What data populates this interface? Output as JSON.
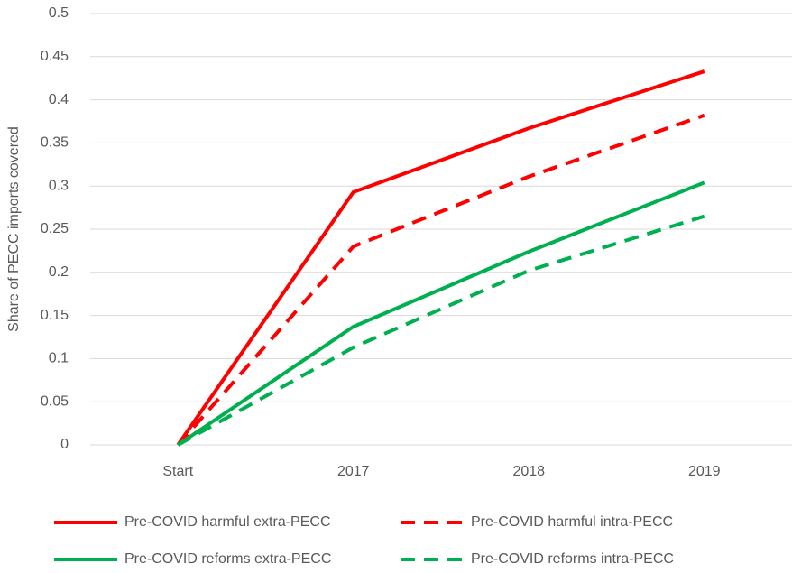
{
  "chart_data": {
    "type": "line",
    "y_label": "Share of PECC imports covered",
    "categories": [
      "Start",
      "2017",
      "2018",
      "2019"
    ],
    "series": [
      {
        "name": "Pre-COVID harmful extra-PECC",
        "color": "#ff0000",
        "dashed": false,
        "values": [
          0,
          0.293,
          0.367,
          0.433
        ]
      },
      {
        "name": "Pre-COVID harmful intra-PECC",
        "color": "#ff0000",
        "dashed": true,
        "values": [
          0,
          0.23,
          0.311,
          0.382
        ]
      },
      {
        "name": "Pre-COVID reforms extra-PECC",
        "color": "#00b050",
        "dashed": false,
        "values": [
          0,
          0.137,
          0.224,
          0.304
        ]
      },
      {
        "name": "Pre-COVID reforms intra-PECC",
        "color": "#00b050",
        "dashed": true,
        "values": [
          0,
          0.113,
          0.202,
          0.265
        ]
      }
    ],
    "ylim": [
      0,
      0.5
    ],
    "yticks": [
      0,
      0.05,
      0.1,
      0.15,
      0.2,
      0.25,
      0.3,
      0.35,
      0.4,
      0.45,
      0.5
    ],
    "grid": true
  }
}
